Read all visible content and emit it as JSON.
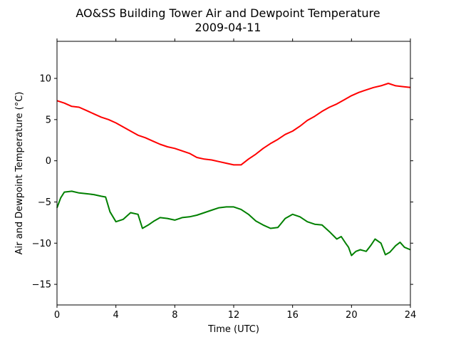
{
  "chart_data": {
    "type": "line",
    "title": "AO&SS Building Tower Air and Dewpoint Temperature",
    "subtitle": "2009-04-11",
    "xlabel": "Time (UTC)",
    "ylabel": "Air and Dewpoint Temperature (°C)",
    "xlim": [
      0,
      24
    ],
    "ylim": [
      -17.5,
      14.5
    ],
    "x_ticks": [
      0,
      4,
      8,
      12,
      16,
      20,
      24
    ],
    "y_ticks": [
      -15,
      -10,
      -5,
      0,
      5,
      10
    ],
    "x_tick_labels": [
      "0",
      "4",
      "8",
      "12",
      "16",
      "20",
      "24"
    ],
    "y_tick_labels": [
      "−15",
      "−10",
      "−5",
      "0",
      "5",
      "10"
    ],
    "grid": false,
    "series": [
      {
        "color": "#ff0000",
        "x": [
          0,
          0.5,
          1,
          1.5,
          2,
          2.5,
          3,
          3.5,
          4,
          4.5,
          5,
          5.5,
          6,
          6.5,
          7,
          7.5,
          8,
          8.5,
          9,
          9.5,
          10,
          10.5,
          11,
          11.5,
          12,
          12.5,
          13,
          13.5,
          14,
          14.5,
          15,
          15.5,
          16,
          16.5,
          17,
          17.5,
          18,
          18.5,
          19,
          19.5,
          20,
          20.5,
          21,
          21.5,
          22,
          22.5,
          23,
          23.5,
          24
        ],
        "values": [
          7.3,
          7.0,
          6.6,
          6.5,
          6.1,
          5.7,
          5.3,
          5.0,
          4.6,
          4.1,
          3.6,
          3.1,
          2.8,
          2.4,
          2.0,
          1.7,
          1.5,
          1.2,
          0.9,
          0.4,
          0.2,
          0.1,
          -0.1,
          -0.3,
          -0.5,
          -0.5,
          0.2,
          0.8,
          1.5,
          2.1,
          2.6,
          3.2,
          3.6,
          4.2,
          4.9,
          5.4,
          6.0,
          6.5,
          6.9,
          7.4,
          7.9,
          8.3,
          8.6,
          8.9,
          9.1,
          9.4,
          9.1,
          9.0,
          8.9
        ]
      },
      {
        "color": "#008000",
        "x": [
          0,
          0.25,
          0.5,
          1,
          1.5,
          2,
          2.5,
          3,
          3.3,
          3.6,
          4,
          4.5,
          5,
          5.5,
          5.8,
          6.2,
          6.6,
          7,
          7.5,
          8,
          8.5,
          9,
          9.5,
          10,
          10.5,
          11,
          11.5,
          12,
          12.5,
          13,
          13.5,
          14,
          14.5,
          15,
          15.5,
          16,
          16.5,
          17,
          17.5,
          18,
          18.5,
          19,
          19.3,
          19.6,
          19.8,
          20,
          20.3,
          20.6,
          21,
          21.3,
          21.6,
          22,
          22.3,
          22.6,
          23,
          23.3,
          23.6,
          24
        ],
        "values": [
          -5.7,
          -4.5,
          -3.8,
          -3.7,
          -3.9,
          -4.0,
          -4.1,
          -4.3,
          -4.4,
          -6.2,
          -7.4,
          -7.1,
          -6.3,
          -6.5,
          -8.2,
          -7.8,
          -7.3,
          -6.9,
          -7.0,
          -7.2,
          -6.9,
          -6.8,
          -6.6,
          -6.3,
          -6.0,
          -5.7,
          -5.6,
          -5.6,
          -5.9,
          -6.5,
          -7.3,
          -7.8,
          -8.2,
          -8.1,
          -7.0,
          -6.5,
          -6.8,
          -7.4,
          -7.7,
          -7.8,
          -8.6,
          -9.5,
          -9.2,
          -10.0,
          -10.5,
          -11.5,
          -11.0,
          -10.8,
          -11.0,
          -10.3,
          -9.5,
          -10.0,
          -11.4,
          -11.1,
          -10.3,
          -9.9,
          -10.5,
          -10.8
        ]
      }
    ]
  }
}
